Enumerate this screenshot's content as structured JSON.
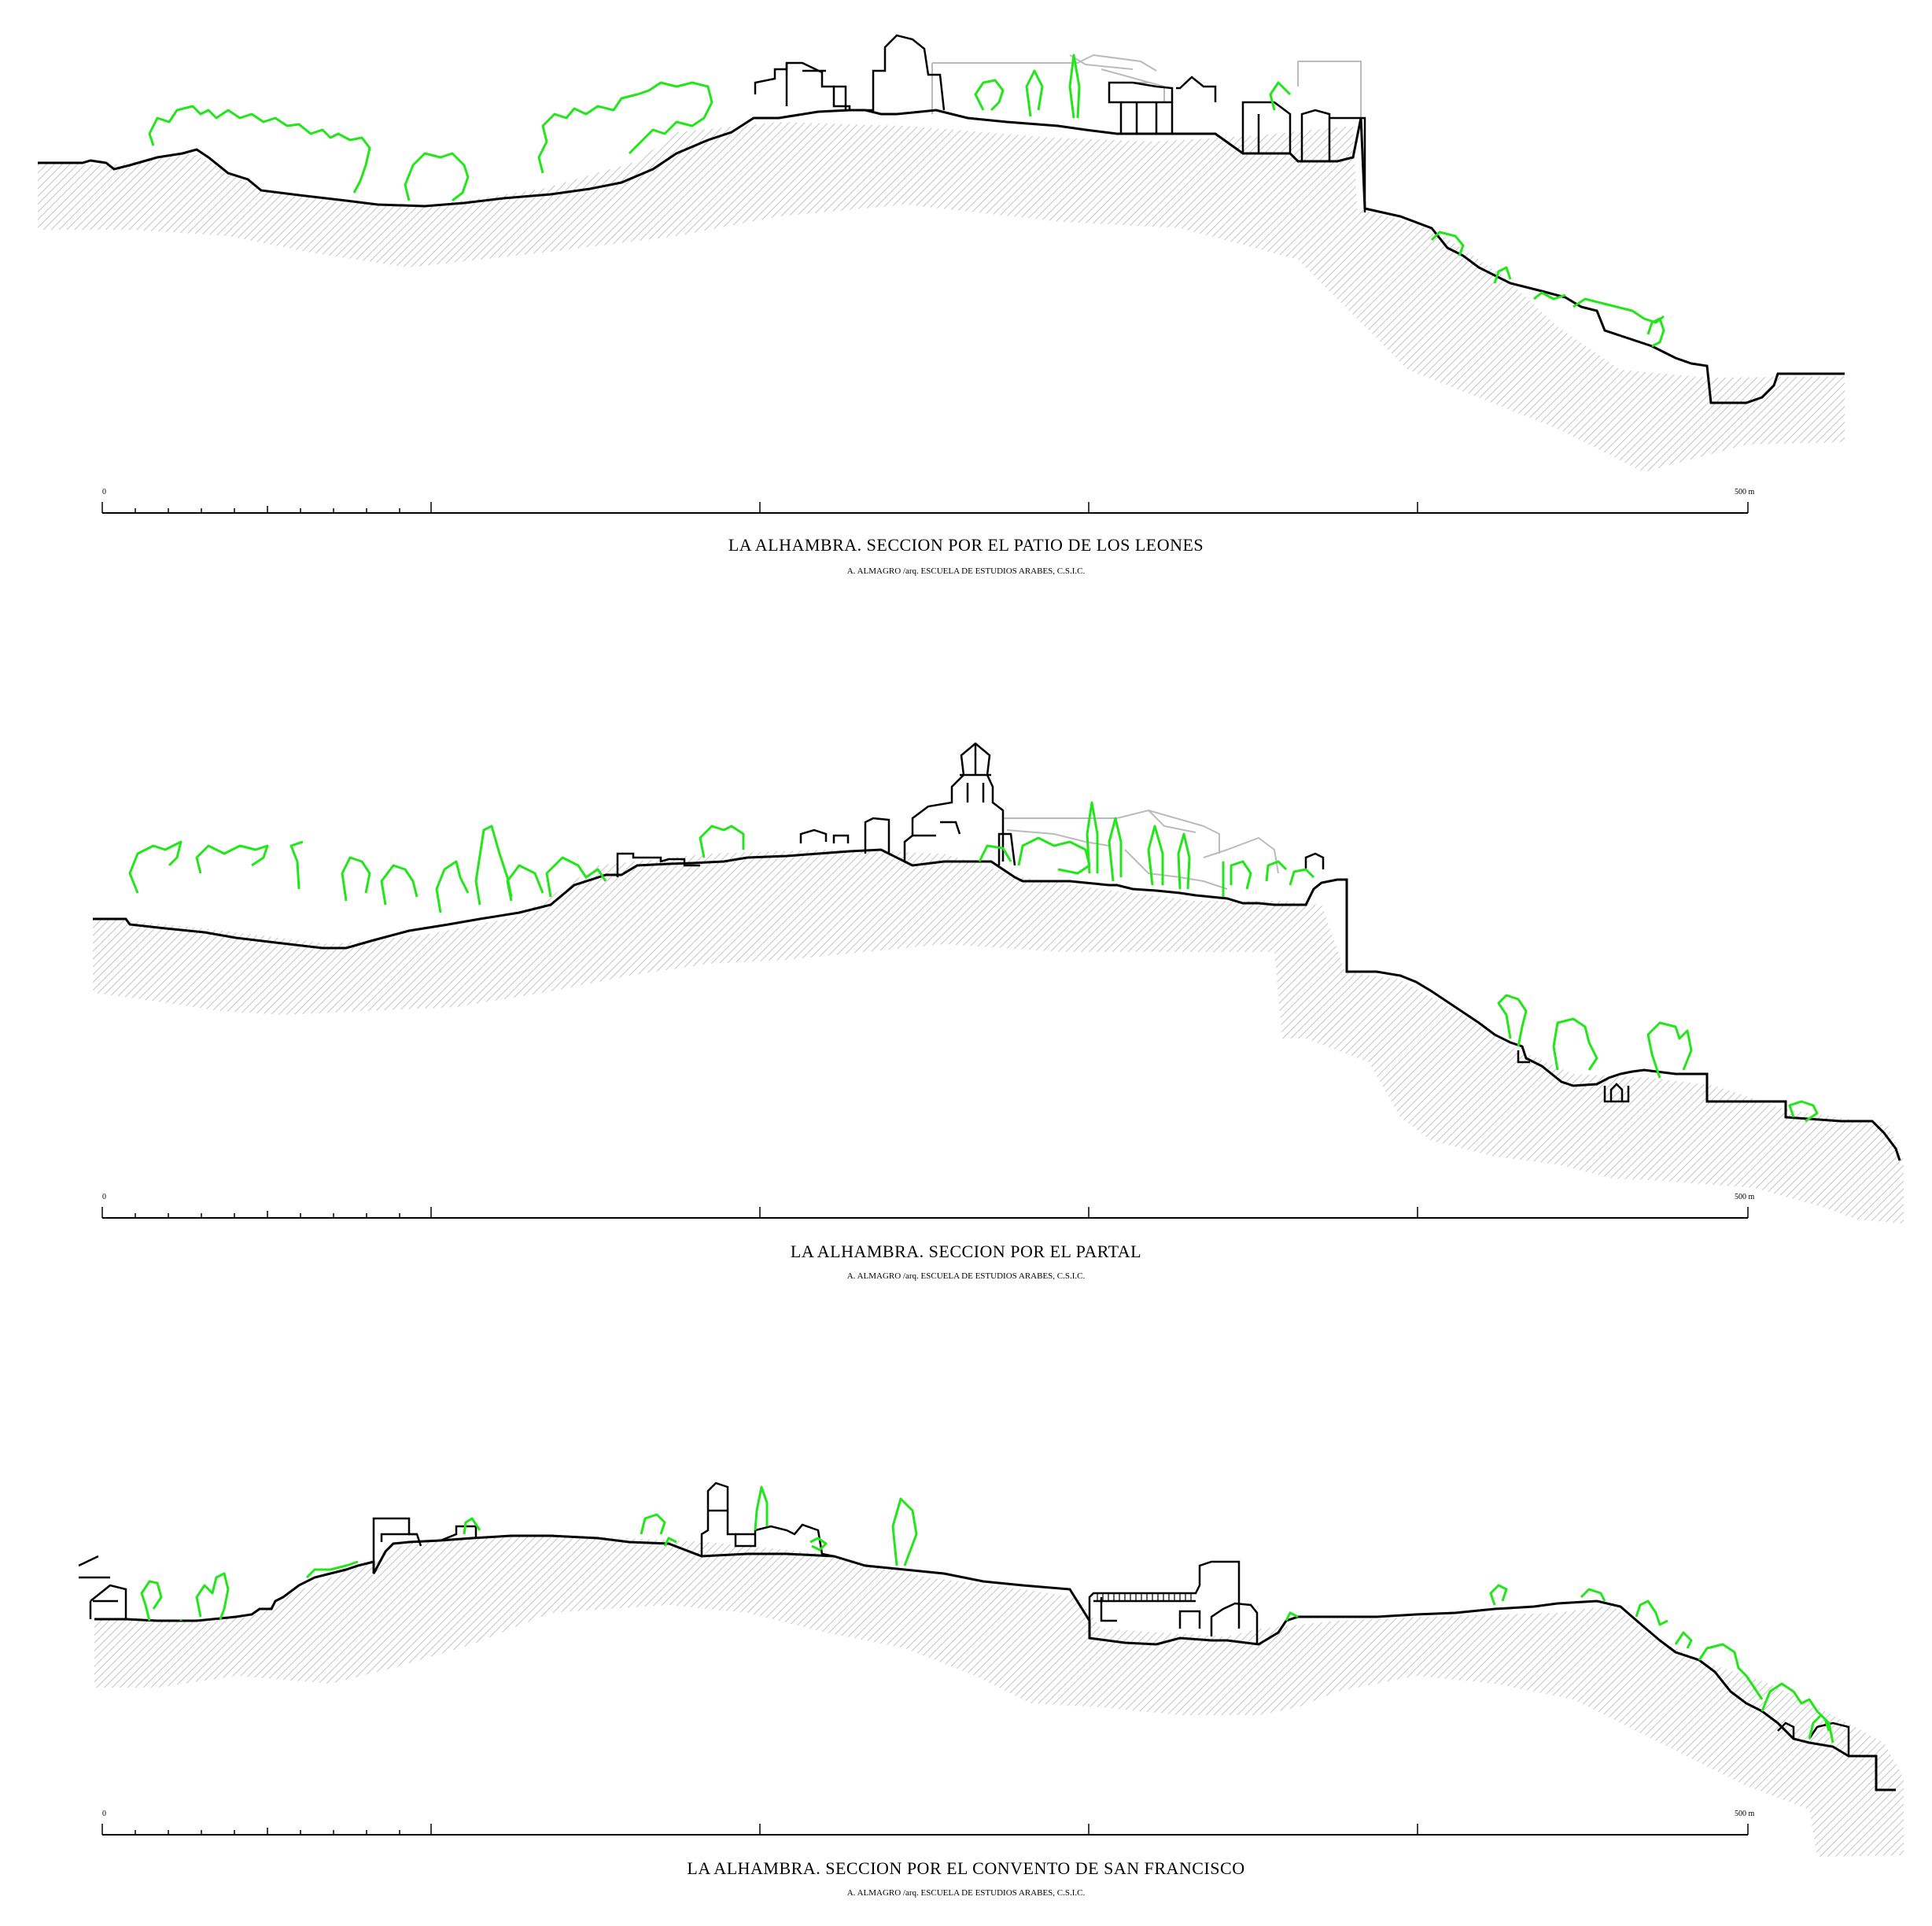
{
  "sections": [
    {
      "title": "LA ALHAMBRA.  SECCION POR EL PATIO DE LOS LEONES",
      "credit": "A. ALMAGRO /arq. ESCUELA DE ESTUDIOS ARABES, C.S.I.C.",
      "scale_start": "0",
      "scale_end": "500 m"
    },
    {
      "title": "LA ALHAMBRA.  SECCION POR EL PARTAL",
      "credit": "A. ALMAGRO /arq. ESCUELA DE ESTUDIOS ARABES, C.S.I.C.",
      "scale_start": "0",
      "scale_end": "500 m"
    },
    {
      "title": "LA ALHAMBRA. SECCION POR EL CONVENTO DE SAN FRANCISCO",
      "credit": "A. ALMAGRO /arq. ESCUELA DE ESTUDIOS ARABES, C.S.I.C.",
      "scale_start": "0",
      "scale_end": "500 m"
    }
  ],
  "colors": {
    "terrain_line": "#000000",
    "terrain_hatch": "#bdbdbd",
    "vegetation": "#22e61a",
    "background_buildings": "#bbbbbb"
  }
}
